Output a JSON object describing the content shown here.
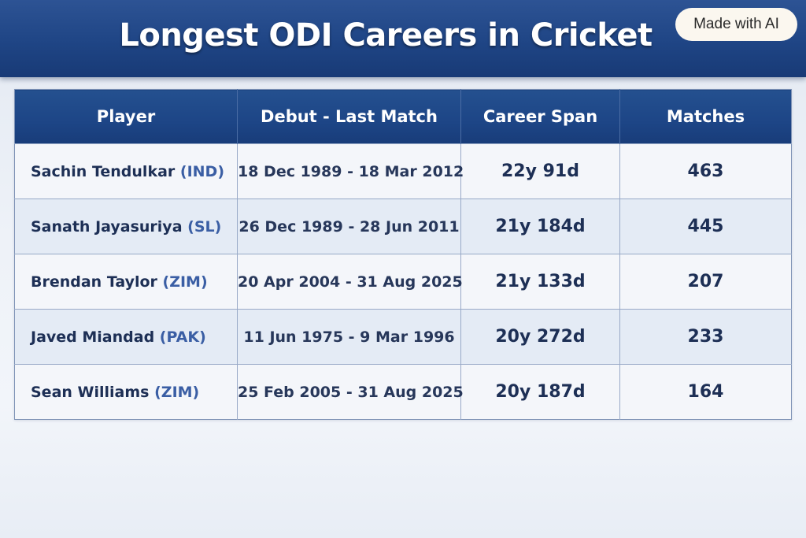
{
  "title": "Longest ODI Careers in Cricket",
  "badge": "Made with AI",
  "colors": {
    "header_bg": "#1f4585",
    "text_dark": "#1d2f55",
    "country_accent": "#3a5ea4",
    "row_light": "#f4f6fa",
    "row_alt": "#e4ebf5"
  },
  "chart_data": {
    "type": "table",
    "columns": [
      "Player",
      "Debut - Last Match",
      "Career Span",
      "Matches"
    ],
    "rows": [
      {
        "player": "Sachin Tendulkar",
        "country": "(IND)",
        "dates": "18 Dec 1989 - 18 Mar 2012",
        "span": "22y 91d",
        "matches": 463
      },
      {
        "player": "Sanath Jayasuriya",
        "country": "(SL)",
        "dates": "26 Dec 1989 - 28 Jun 2011",
        "span": "21y 184d",
        "matches": 445
      },
      {
        "player": "Brendan Taylor",
        "country": "(ZIM)",
        "dates": "20 Apr 2004 - 31 Aug 2025",
        "span": "21y 133d",
        "matches": 207
      },
      {
        "player": "Javed Miandad",
        "country": "(PAK)",
        "dates": "11 Jun 1975 - 9 Mar 1996",
        "span": "20y 272d",
        "matches": 233
      },
      {
        "player": "Sean Williams",
        "country": "(ZIM)",
        "dates": "25 Feb 2005 - 31 Aug 2025",
        "span": "20y 187d",
        "matches": 164
      }
    ]
  }
}
